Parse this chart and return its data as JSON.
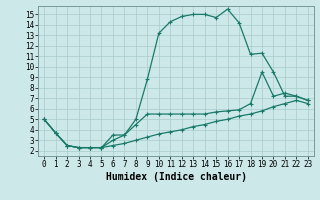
{
  "xlabel": "Humidex (Indice chaleur)",
  "bg_color": "#cce8e8",
  "grid_color": "#aacccc",
  "line_color": "#1a7a6a",
  "xlim": [
    -0.5,
    23.5
  ],
  "ylim": [
    1.5,
    15.8
  ],
  "xticks": [
    0,
    1,
    2,
    3,
    4,
    5,
    6,
    7,
    8,
    9,
    10,
    11,
    12,
    13,
    14,
    15,
    16,
    17,
    18,
    19,
    20,
    21,
    22,
    23
  ],
  "yticks": [
    2,
    3,
    4,
    5,
    6,
    7,
    8,
    9,
    10,
    11,
    12,
    13,
    14,
    15
  ],
  "line1_x": [
    0,
    1,
    2,
    3,
    4,
    5,
    6,
    7,
    8,
    9,
    10,
    11,
    12,
    13,
    14,
    15,
    16,
    17,
    18,
    19,
    20,
    21,
    22,
    23
  ],
  "line1_y": [
    5.0,
    3.7,
    2.5,
    2.3,
    2.3,
    2.3,
    3.5,
    3.5,
    5.0,
    8.8,
    13.2,
    14.3,
    14.8,
    15.0,
    15.0,
    14.7,
    15.5,
    14.2,
    11.2,
    11.3,
    9.5,
    7.2,
    7.2,
    6.8
  ],
  "line2_x": [
    0,
    1,
    2,
    3,
    4,
    5,
    6,
    7,
    8,
    9,
    10,
    11,
    12,
    13,
    14,
    15,
    16,
    17,
    18,
    19,
    20,
    21,
    22,
    23
  ],
  "line2_y": [
    5.0,
    3.7,
    2.5,
    2.3,
    2.3,
    2.3,
    3.0,
    3.5,
    4.5,
    5.5,
    5.5,
    5.5,
    5.5,
    5.5,
    5.5,
    5.7,
    5.8,
    5.9,
    6.5,
    9.5,
    7.2,
    7.5,
    7.2,
    6.8
  ],
  "line3_x": [
    0,
    1,
    2,
    3,
    4,
    5,
    6,
    7,
    8,
    9,
    10,
    11,
    12,
    13,
    14,
    15,
    16,
    17,
    18,
    19,
    20,
    21,
    22,
    23
  ],
  "line3_y": [
    5.0,
    3.7,
    2.5,
    2.3,
    2.3,
    2.3,
    2.5,
    2.7,
    3.0,
    3.3,
    3.6,
    3.8,
    4.0,
    4.3,
    4.5,
    4.8,
    5.0,
    5.3,
    5.5,
    5.8,
    6.2,
    6.5,
    6.8,
    6.5
  ],
  "tick_fontsize": 5.5,
  "xlabel_fontsize": 7
}
